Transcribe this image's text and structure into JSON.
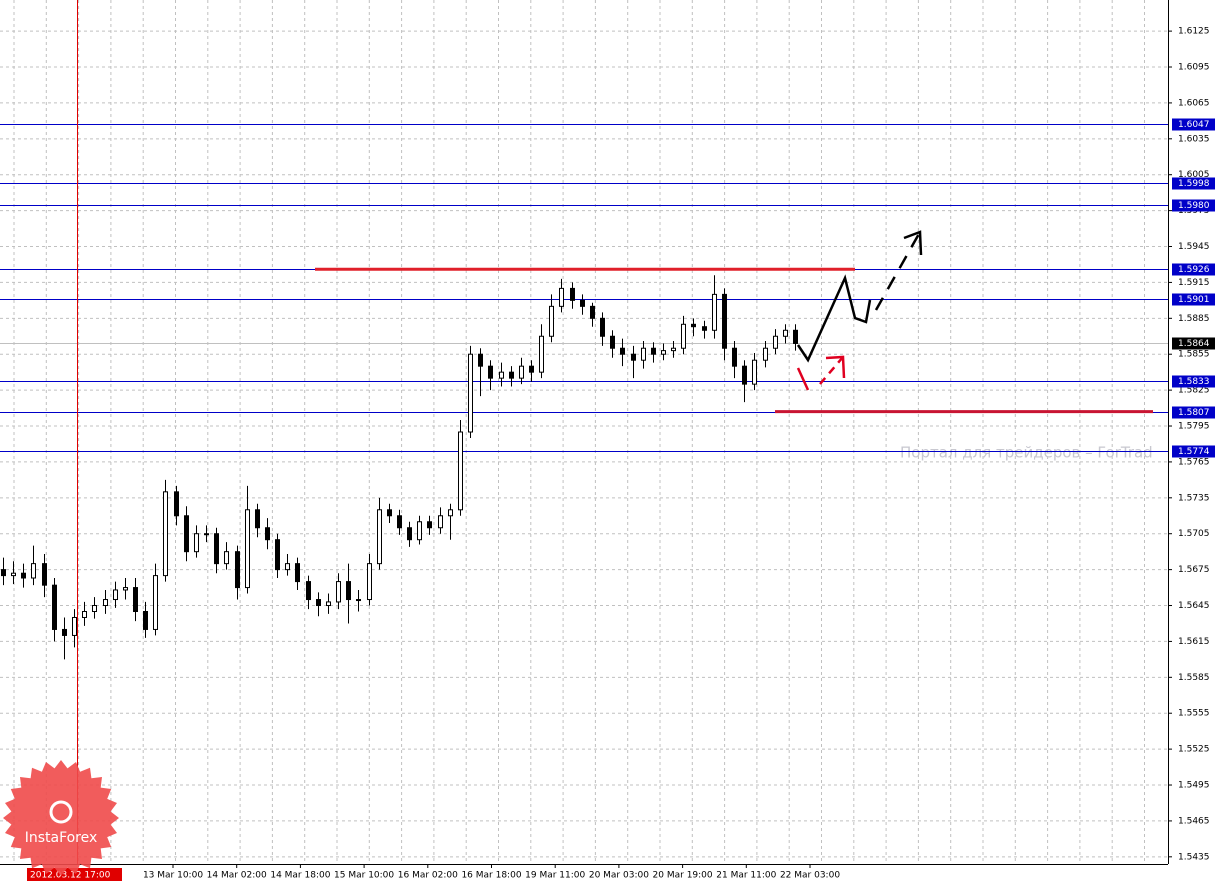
{
  "chart_data": {
    "type": "candlestick",
    "ylim": [
      1.5429,
      1.6151
    ],
    "yticks": [
      1.5435,
      1.5465,
      1.5495,
      1.5525,
      1.5555,
      1.5585,
      1.5615,
      1.5645,
      1.5675,
      1.5705,
      1.5735,
      1.5765,
      1.5795,
      1.5825,
      1.5855,
      1.5885,
      1.5915,
      1.5945,
      1.5975,
      1.6005,
      1.6035,
      1.6065,
      1.6095,
      1.6125
    ],
    "grid": true,
    "categories": [
      "13 Mar 10:00",
      "14 Mar 02:00",
      "14 Mar 18:00",
      "15 Mar 10:00",
      "16 Mar 02:00",
      "16 Mar 18:00",
      "19 Mar 11:00",
      "20 Mar 03:00",
      "20 Mar 19:00",
      "21 Mar 11:00",
      "22 Mar 03:00"
    ],
    "cursor_label": "2012.03.12 17:00",
    "levels": [
      1.6047,
      1.5998,
      {
        "value": 1.598,
        "label": "1.5980"
      },
      1.5926,
      1.5901,
      1.5833,
      1.5807,
      1.5774
    ],
    "level_color": "#0000c8",
    "current_price": 1.5864,
    "watermark": "Портал для трейдеров – ForTrad",
    "logo": "InstaForex",
    "open": [
      1.5675,
      1.567,
      1.5672,
      1.5668,
      1.568,
      1.5662,
      1.5625,
      1.562,
      1.5635,
      1.564,
      1.5645,
      1.565,
      1.5658,
      1.566,
      1.564,
      1.5625,
      1.567,
      1.574,
      1.572,
      1.569,
      1.5705,
      1.5705,
      1.568,
      1.569,
      1.566,
      1.5725,
      1.571,
      1.57,
      1.5675,
      1.568,
      1.5665,
      1.565,
      1.5645,
      1.5648,
      1.5665,
      1.565,
      1.565,
      1.568,
      1.5725,
      1.572,
      1.571,
      1.57,
      1.5715,
      1.571,
      1.572,
      1.5725,
      1.579,
      1.5855,
      1.5845,
      1.5835,
      1.584,
      1.5835,
      1.5845,
      1.584,
      1.587,
      1.5895,
      1.591,
      1.59,
      1.5895,
      1.5885,
      1.587,
      1.586,
      1.5855,
      1.585,
      1.586,
      1.5855,
      1.5858,
      1.586,
      1.588,
      1.5878,
      1.5875,
      1.5905,
      1.586,
      1.5845,
      1.583,
      1.585,
      1.586,
      1.587,
      1.5875
    ],
    "high": [
      1.5685,
      1.5682,
      1.568,
      1.5695,
      1.5688,
      1.5668,
      1.5635,
      1.5642,
      1.5648,
      1.5652,
      1.5658,
      1.5665,
      1.5668,
      1.5668,
      1.5648,
      1.568,
      1.575,
      1.5745,
      1.5728,
      1.5712,
      1.5712,
      1.571,
      1.5698,
      1.5695,
      1.5745,
      1.573,
      1.5718,
      1.5705,
      1.5688,
      1.5685,
      1.567,
      1.5656,
      1.5655,
      1.5672,
      1.568,
      1.5658,
      1.5688,
      1.5735,
      1.573,
      1.5725,
      1.5715,
      1.572,
      1.572,
      1.5727,
      1.573,
      1.58,
      1.5862,
      1.586,
      1.585,
      1.5848,
      1.5845,
      1.5852,
      1.585,
      1.588,
      1.5905,
      1.5918,
      1.5915,
      1.5905,
      1.5898,
      1.589,
      1.5875,
      1.5868,
      1.5862,
      1.5866,
      1.5865,
      1.5864,
      1.5866,
      1.5887,
      1.5885,
      1.5883,
      1.5921,
      1.591,
      1.5866,
      1.585,
      1.5856,
      1.5866,
      1.5876,
      1.588,
      1.588
    ],
    "low": [
      1.5662,
      1.5663,
      1.566,
      1.5662,
      1.5652,
      1.5615,
      1.56,
      1.561,
      1.5628,
      1.5634,
      1.5638,
      1.5643,
      1.565,
      1.5632,
      1.5618,
      1.562,
      1.5665,
      1.5712,
      1.5682,
      1.5685,
      1.5698,
      1.5672,
      1.5675,
      1.565,
      1.5655,
      1.5702,
      1.5692,
      1.5668,
      1.567,
      1.5658,
      1.5642,
      1.5636,
      1.5638,
      1.5642,
      1.563,
      1.564,
      1.5645,
      1.5675,
      1.5714,
      1.5704,
      1.5694,
      1.5696,
      1.5704,
      1.5705,
      1.57,
      1.572,
      1.5785,
      1.582,
      1.5825,
      1.5828,
      1.5828,
      1.583,
      1.5832,
      1.5835,
      1.5865,
      1.589,
      1.5893,
      1.5888,
      1.5878,
      1.5862,
      1.5852,
      1.5845,
      1.5835,
      1.5843,
      1.5848,
      1.585,
      1.5852,
      1.5855,
      1.587,
      1.5868,
      1.5868,
      1.585,
      1.5835,
      1.5815,
      1.5825,
      1.5844,
      1.5855,
      1.5864,
      1.5858
    ],
    "close": [
      1.567,
      1.5672,
      1.5668,
      1.568,
      1.5662,
      1.5625,
      1.562,
      1.5635,
      1.564,
      1.5645,
      1.565,
      1.5658,
      1.566,
      1.564,
      1.5625,
      1.567,
      1.574,
      1.572,
      1.569,
      1.5705,
      1.5705,
      1.568,
      1.569,
      1.566,
      1.5725,
      1.571,
      1.57,
      1.5675,
      1.568,
      1.5665,
      1.565,
      1.5645,
      1.5648,
      1.5665,
      1.565,
      1.565,
      1.568,
      1.5725,
      1.572,
      1.571,
      1.57,
      1.5715,
      1.571,
      1.572,
      1.5725,
      1.579,
      1.5855,
      1.5845,
      1.5835,
      1.584,
      1.5835,
      1.5845,
      1.584,
      1.587,
      1.5895,
      1.591,
      1.59,
      1.5895,
      1.5885,
      1.587,
      1.586,
      1.5855,
      1.585,
      1.586,
      1.5855,
      1.5858,
      1.586,
      1.588,
      1.5878,
      1.5875,
      1.5905,
      1.586,
      1.5845,
      1.583,
      1.585,
      1.586,
      1.587,
      1.5875,
      1.5864
    ]
  }
}
